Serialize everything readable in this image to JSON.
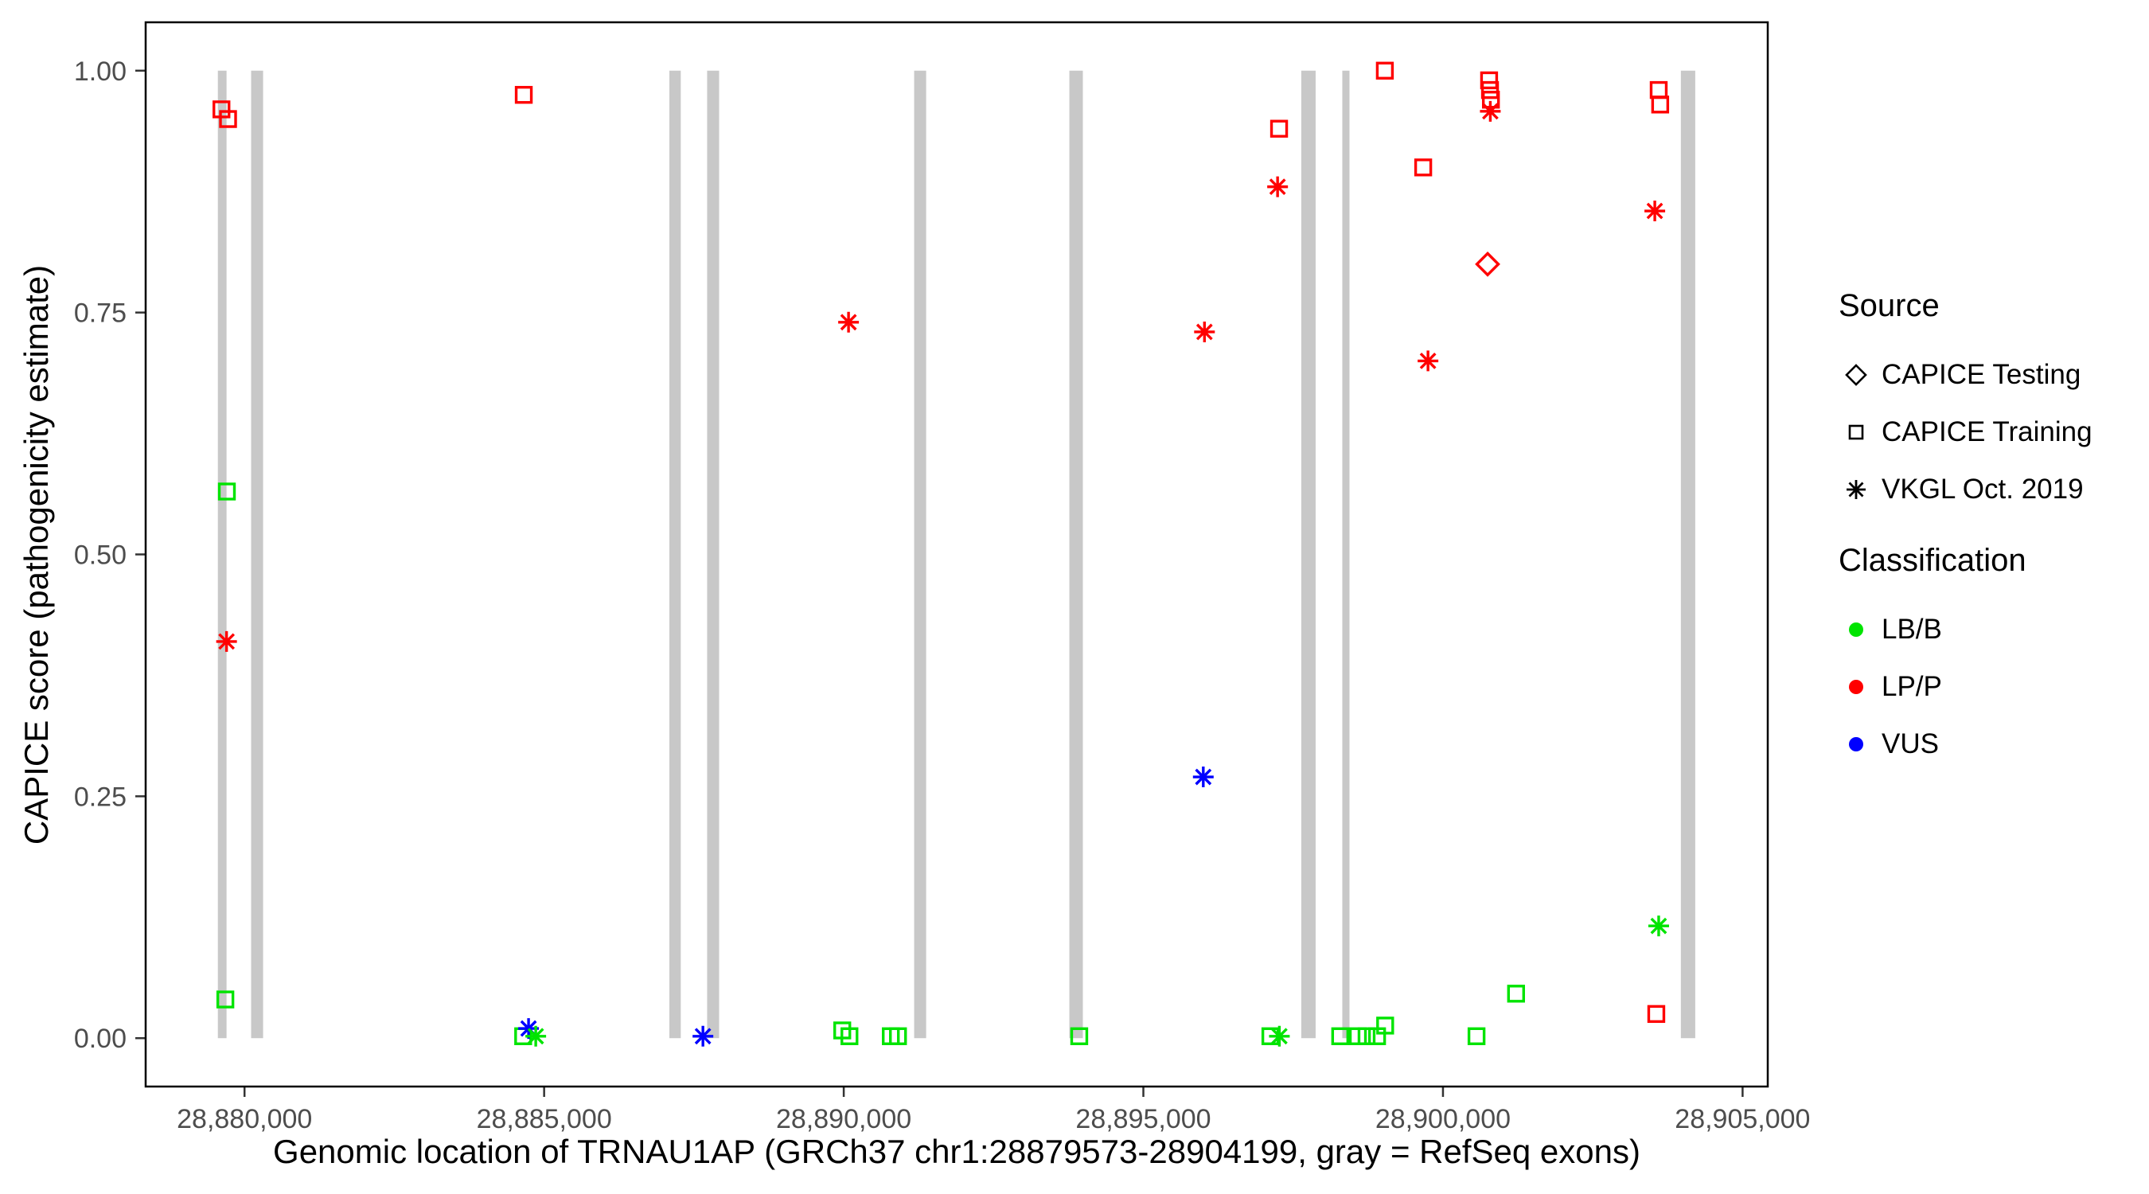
{
  "chart_data": {
    "type": "scatter",
    "title": "",
    "xlabel": "Genomic location of TRNAU1AP (GRCh37 chr1:28879573-28904199, gray = RefSeq exons)",
    "ylabel": "CAPICE score (pathogenicity estimate)",
    "xlim": [
      28878350,
      28905420
    ],
    "ylim": [
      -0.05,
      1.05
    ],
    "grid": false,
    "legend_position": "right",
    "x_ticks": [
      {
        "value": 28880000,
        "label": "28,880,000"
      },
      {
        "value": 28885000,
        "label": "28,885,000"
      },
      {
        "value": 28890000,
        "label": "28,890,000"
      },
      {
        "value": 28895000,
        "label": "28,895,000"
      },
      {
        "value": 28900000,
        "label": "28,900,000"
      },
      {
        "value": 28905000,
        "label": "28,905,000"
      }
    ],
    "y_ticks": [
      {
        "value": 0.0,
        "label": "0.00"
      },
      {
        "value": 0.25,
        "label": "0.25"
      },
      {
        "value": 0.5,
        "label": "0.50"
      },
      {
        "value": 0.75,
        "label": "0.75"
      },
      {
        "value": 1.0,
        "label": "1.00"
      }
    ],
    "exon_color": "#c8c8c8",
    "exons": [
      [
        28879555,
        28879700
      ],
      [
        28880110,
        28880310
      ],
      [
        28887090,
        28887280
      ],
      [
        28887720,
        28887920
      ],
      [
        28891175,
        28891375
      ],
      [
        28893765,
        28893990
      ],
      [
        28897635,
        28897875
      ],
      [
        28898320,
        28898440
      ],
      [
        28903970,
        28904210
      ]
    ],
    "shape_by_source": {
      "CAPICE Testing": "diamond",
      "CAPICE Training": "square",
      "VKGL Oct. 2019": "asterisk"
    },
    "classification_colors": {
      "LB/B": "#00e400",
      "LP/P": "#ff0000",
      "VUS": "#0000ff"
    },
    "points": [
      {
        "x": 28879615,
        "y": 0.96,
        "source": "CAPICE Training",
        "classification": "LP/P"
      },
      {
        "x": 28879725,
        "y": 0.95,
        "source": "CAPICE Training",
        "classification": "LP/P"
      },
      {
        "x": 28879705,
        "y": 0.565,
        "source": "CAPICE Training",
        "classification": "LB/B"
      },
      {
        "x": 28879700,
        "y": 0.41,
        "source": "VKGL Oct. 2019",
        "classification": "LP/P"
      },
      {
        "x": 28879680,
        "y": 0.04,
        "source": "CAPICE Training",
        "classification": "LB/B"
      },
      {
        "x": 28884660,
        "y": 0.975,
        "source": "CAPICE Training",
        "classification": "LP/P"
      },
      {
        "x": 28884650,
        "y": 0.002,
        "source": "CAPICE Training",
        "classification": "LB/B"
      },
      {
        "x": 28884740,
        "y": 0.01,
        "source": "VKGL Oct. 2019",
        "classification": "VUS"
      },
      {
        "x": 28884860,
        "y": 0.002,
        "source": "VKGL Oct. 2019",
        "classification": "LB/B"
      },
      {
        "x": 28887650,
        "y": 0.002,
        "source": "VKGL Oct. 2019",
        "classification": "VUS"
      },
      {
        "x": 28890080,
        "y": 0.74,
        "source": "VKGL Oct. 2019",
        "classification": "LP/P"
      },
      {
        "x": 28889975,
        "y": 0.008,
        "source": "CAPICE Training",
        "classification": "LB/B"
      },
      {
        "x": 28890095,
        "y": 0.002,
        "source": "CAPICE Training",
        "classification": "LB/B"
      },
      {
        "x": 28890785,
        "y": 0.002,
        "source": "CAPICE Training",
        "classification": "LB/B"
      },
      {
        "x": 28890905,
        "y": 0.002,
        "source": "CAPICE Training",
        "classification": "LB/B"
      },
      {
        "x": 28893930,
        "y": 0.002,
        "source": "CAPICE Training",
        "classification": "LB/B"
      },
      {
        "x": 28896020,
        "y": 0.73,
        "source": "VKGL Oct. 2019",
        "classification": "LP/P"
      },
      {
        "x": 28896000,
        "y": 0.27,
        "source": "VKGL Oct. 2019",
        "classification": "VUS"
      },
      {
        "x": 28897265,
        "y": 0.94,
        "source": "CAPICE Training",
        "classification": "LP/P"
      },
      {
        "x": 28897240,
        "y": 0.88,
        "source": "VKGL Oct. 2019",
        "classification": "LP/P"
      },
      {
        "x": 28897120,
        "y": 0.002,
        "source": "CAPICE Training",
        "classification": "LB/B"
      },
      {
        "x": 28897270,
        "y": 0.002,
        "source": "VKGL Oct. 2019",
        "classification": "LB/B"
      },
      {
        "x": 28898285,
        "y": 0.002,
        "source": "CAPICE Training",
        "classification": "LB/B"
      },
      {
        "x": 28898580,
        "y": 0.002,
        "source": "CAPICE Training",
        "classification": "LB/B"
      },
      {
        "x": 28898725,
        "y": 0.002,
        "source": "CAPICE Training",
        "classification": "LB/B"
      },
      {
        "x": 28898900,
        "y": 0.002,
        "source": "CAPICE Training",
        "classification": "LB/B"
      },
      {
        "x": 28899035,
        "y": 0.013,
        "source": "CAPICE Training",
        "classification": "LB/B"
      },
      {
        "x": 28899030,
        "y": 1.0,
        "source": "CAPICE Training",
        "classification": "LP/P"
      },
      {
        "x": 28899670,
        "y": 0.9,
        "source": "CAPICE Training",
        "classification": "LP/P"
      },
      {
        "x": 28899750,
        "y": 0.7,
        "source": "VKGL Oct. 2019",
        "classification": "LP/P"
      },
      {
        "x": 28900770,
        "y": 0.99,
        "source": "CAPICE Training",
        "classification": "LP/P"
      },
      {
        "x": 28900785,
        "y": 0.98,
        "source": "CAPICE Training",
        "classification": "LP/P"
      },
      {
        "x": 28900800,
        "y": 0.97,
        "source": "CAPICE Training",
        "classification": "LP/P"
      },
      {
        "x": 28900790,
        "y": 0.958,
        "source": "VKGL Oct. 2019",
        "classification": "LP/P"
      },
      {
        "x": 28900745,
        "y": 0.8,
        "source": "CAPICE Testing",
        "classification": "LP/P"
      },
      {
        "x": 28900560,
        "y": 0.002,
        "source": "CAPICE Training",
        "classification": "LB/B"
      },
      {
        "x": 28901220,
        "y": 0.046,
        "source": "CAPICE Training",
        "classification": "LB/B"
      },
      {
        "x": 28903600,
        "y": 0.98,
        "source": "CAPICE Training",
        "classification": "LP/P"
      },
      {
        "x": 28903625,
        "y": 0.965,
        "source": "CAPICE Training",
        "classification": "LP/P"
      },
      {
        "x": 28903535,
        "y": 0.855,
        "source": "VKGL Oct. 2019",
        "classification": "LP/P"
      },
      {
        "x": 28903600,
        "y": 0.116,
        "source": "VKGL Oct. 2019",
        "classification": "LB/B"
      },
      {
        "x": 28903560,
        "y": 0.025,
        "source": "CAPICE Training",
        "classification": "LP/P"
      }
    ]
  },
  "legend": {
    "source": {
      "title": "Source",
      "items": [
        {
          "label": "CAPICE Testing",
          "shape": "diamond"
        },
        {
          "label": "CAPICE Training",
          "shape": "square"
        },
        {
          "label": "VKGL Oct. 2019",
          "shape": "asterisk"
        }
      ]
    },
    "classification": {
      "title": "Classification",
      "items": [
        {
          "label": "LB/B"
        },
        {
          "label": "LP/P"
        },
        {
          "label": "VUS"
        }
      ]
    }
  }
}
